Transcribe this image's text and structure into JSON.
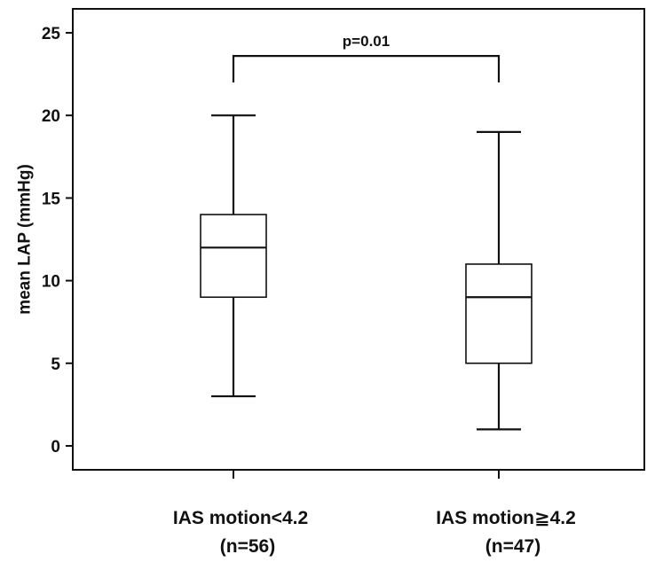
{
  "chart_data": {
    "type": "box",
    "title": "",
    "xlabel": "",
    "ylabel": "mean LAP (mmHg)",
    "ylim": [
      -1.5,
      26
    ],
    "yticks": [
      0,
      5,
      10,
      15,
      20,
      25
    ],
    "categories": [
      {
        "line1": "IAS motion<4.2",
        "line2": "(n=56)"
      },
      {
        "line1": "IAS motion≧4.2",
        "line2": "(n=47)"
      }
    ],
    "boxes": [
      {
        "min": 3,
        "q1": 9,
        "median": 12,
        "q3": 14,
        "max": 20
      },
      {
        "min": 1,
        "q1": 5,
        "median": 9,
        "q3": 11,
        "max": 19
      }
    ],
    "annotation": {
      "text": "p=0.01",
      "y": 23.6
    },
    "grid": false,
    "legend": "none",
    "colors": {
      "stroke": "#111111",
      "box_fill": "#ffffff",
      "background": "#ffffff"
    }
  }
}
